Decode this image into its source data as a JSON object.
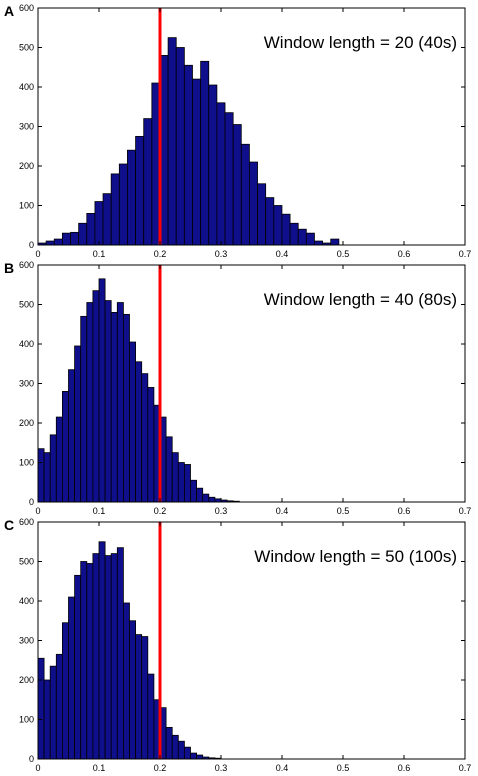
{
  "figure": {
    "panel_letters": [
      "A",
      "B",
      "C"
    ]
  },
  "chart_data": [
    {
      "type": "bar",
      "panel": "A",
      "annotation": "Window length = 20 (40s)",
      "bin_width": 0.01333,
      "x_start": 0.0,
      "values": [
        5,
        10,
        15,
        30,
        32,
        55,
        80,
        110,
        130,
        180,
        205,
        240,
        275,
        320,
        410,
        480,
        525,
        500,
        455,
        420,
        465,
        405,
        360,
        335,
        305,
        255,
        210,
        155,
        120,
        100,
        78,
        55,
        40,
        30,
        10,
        5,
        15
      ],
      "xlim": [
        0,
        0.7
      ],
      "ylim": [
        0,
        600
      ],
      "xticks": [
        "0",
        "0.1",
        "0.2",
        "0.3",
        "0.4",
        "0.5",
        "0.6",
        "0.7"
      ],
      "yticks": [
        "0",
        "100",
        "200",
        "300",
        "400",
        "500",
        "600"
      ],
      "vline": 0.2,
      "bar_color": "#0f0f8c",
      "vline_color": "#ff0000"
    },
    {
      "type": "bar",
      "panel": "B",
      "annotation": "Window length = 40 (80s)",
      "bin_width": 0.01,
      "x_start": 0.0,
      "values": [
        135,
        125,
        170,
        215,
        280,
        335,
        395,
        470,
        505,
        535,
        565,
        510,
        480,
        505,
        475,
        405,
        355,
        325,
        290,
        245,
        215,
        165,
        125,
        100,
        95,
        55,
        35,
        20,
        12,
        8,
        5,
        3,
        2
      ],
      "xlim": [
        0,
        0.7
      ],
      "ylim": [
        0,
        600
      ],
      "xticks": [
        "0",
        "0.1",
        "0.2",
        "0.3",
        "0.4",
        "0.5",
        "0.6",
        "0.7"
      ],
      "yticks": [
        "0",
        "100",
        "200",
        "300",
        "400",
        "500",
        "600"
      ],
      "vline": 0.2,
      "bar_color": "#0f0f8c",
      "vline_color": "#ff0000"
    },
    {
      "type": "bar",
      "panel": "C",
      "annotation": "Window length = 50 (100s)",
      "bin_width": 0.01,
      "x_start": 0.0,
      "values": [
        255,
        200,
        235,
        265,
        345,
        410,
        465,
        500,
        495,
        520,
        550,
        515,
        520,
        535,
        395,
        350,
        315,
        310,
        215,
        150,
        130,
        80,
        60,
        45,
        30,
        15,
        10,
        5,
        3,
        2
      ],
      "xlim": [
        0,
        0.7
      ],
      "ylim": [
        0,
        600
      ],
      "xticks": [
        "0",
        "0.1",
        "0.2",
        "0.3",
        "0.4",
        "0.5",
        "0.6",
        "0.7"
      ],
      "yticks": [
        "0",
        "100",
        "200",
        "300",
        "400",
        "500",
        "600"
      ],
      "vline": 0.2,
      "bar_color": "#0f0f8c",
      "vline_color": "#ff0000"
    }
  ]
}
